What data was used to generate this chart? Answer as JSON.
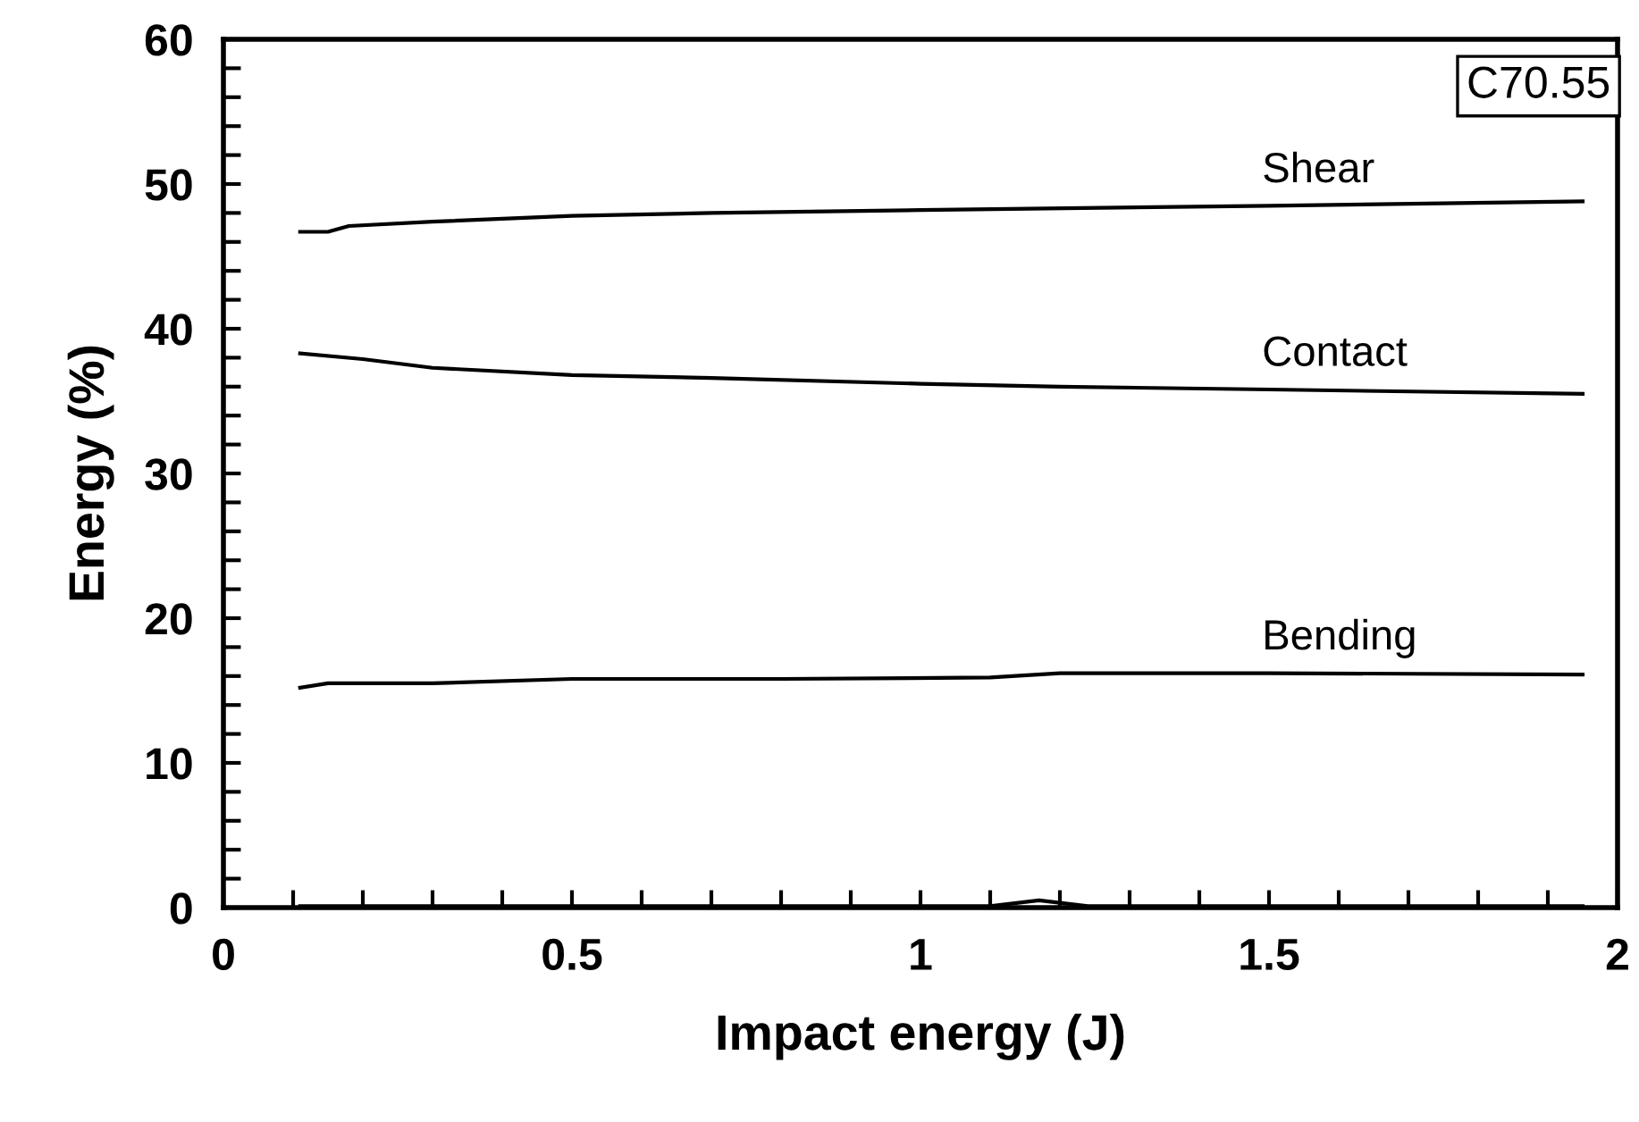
{
  "chart_data": {
    "type": "line",
    "xlabel": "Impact energy (J)",
    "ylabel": "Energy (%)",
    "annotations": [
      "C70.55"
    ],
    "xlim": [
      0,
      2
    ],
    "ylim": [
      0,
      60
    ],
    "xticks": [
      0,
      {
        "value": 0.1,
        "label": null
      },
      {
        "value": 0.2,
        "label": null
      },
      {
        "value": 0.3,
        "label": null
      },
      {
        "value": 0.4,
        "label": null
      },
      0.5,
      {
        "value": 0.6,
        "label": null
      },
      {
        "value": 0.7,
        "label": null
      },
      {
        "value": 0.8,
        "label": null
      },
      {
        "value": 0.9,
        "label": null
      },
      1,
      {
        "value": 1.1,
        "label": null
      },
      {
        "value": 1.2,
        "label": null
      },
      {
        "value": 1.3,
        "label": null
      },
      {
        "value": 1.4,
        "label": null
      },
      1.5,
      {
        "value": 1.6,
        "label": null
      },
      {
        "value": 1.7,
        "label": null
      },
      {
        "value": 1.8,
        "label": null
      },
      {
        "value": 1.9,
        "label": null
      },
      2
    ],
    "yticks": [
      0,
      {
        "value": 2,
        "label": null
      },
      {
        "value": 4,
        "label": null
      },
      {
        "value": 6,
        "label": null
      },
      {
        "value": 8,
        "label": null
      },
      10,
      {
        "value": 12,
        "label": null
      },
      {
        "value": 14,
        "label": null
      },
      {
        "value": 16,
        "label": null
      },
      {
        "value": 18,
        "label": null
      },
      20,
      {
        "value": 22,
        "label": null
      },
      {
        "value": 24,
        "label": null
      },
      {
        "value": 26,
        "label": null
      },
      {
        "value": 28,
        "label": null
      },
      30,
      {
        "value": 32,
        "label": null
      },
      {
        "value": 34,
        "label": null
      },
      {
        "value": 36,
        "label": null
      },
      {
        "value": 38,
        "label": null
      },
      40,
      {
        "value": 42,
        "label": null
      },
      {
        "value": 44,
        "label": null
      },
      {
        "value": 46,
        "label": null
      },
      {
        "value": 48,
        "label": null
      },
      50,
      {
        "value": 52,
        "label": null
      },
      {
        "value": 54,
        "label": null
      },
      {
        "value": 56,
        "label": null
      },
      {
        "value": 58,
        "label": null
      },
      60
    ],
    "grid": false,
    "legend": false,
    "marker": "none",
    "line_style": "solid",
    "series": [
      {
        "name": "Shear",
        "color": "#000000",
        "x": [
          0.11,
          0.15,
          0.18,
          0.3,
          0.5,
          0.7,
          1.0,
          1.5,
          1.95
        ],
        "values": [
          46.7,
          46.7,
          47.1,
          47.4,
          47.8,
          48.0,
          48.2,
          48.5,
          48.8
        ]
      },
      {
        "name": "Contact",
        "color": "#000000",
        "x": [
          0.11,
          0.2,
          0.3,
          0.5,
          0.7,
          1.0,
          1.2,
          1.5,
          1.95
        ],
        "values": [
          38.3,
          37.9,
          37.3,
          36.8,
          36.6,
          36.2,
          36.0,
          35.8,
          35.5
        ]
      },
      {
        "name": "Bending",
        "color": "#000000",
        "x": [
          0.11,
          0.15,
          0.3,
          0.5,
          0.8,
          1.1,
          1.2,
          1.5,
          1.95
        ],
        "values": [
          15.2,
          15.5,
          15.5,
          15.8,
          15.8,
          15.9,
          16.2,
          16.2,
          16.1
        ]
      },
      {
        "color": "#000000",
        "x": [
          0.11,
          0.5,
          1.0,
          1.1,
          1.17,
          1.24,
          1.5,
          1.95
        ],
        "values": [
          0.1,
          0.1,
          0.1,
          0.1,
          0.5,
          0.1,
          0.1,
          0.1
        ]
      }
    ]
  }
}
